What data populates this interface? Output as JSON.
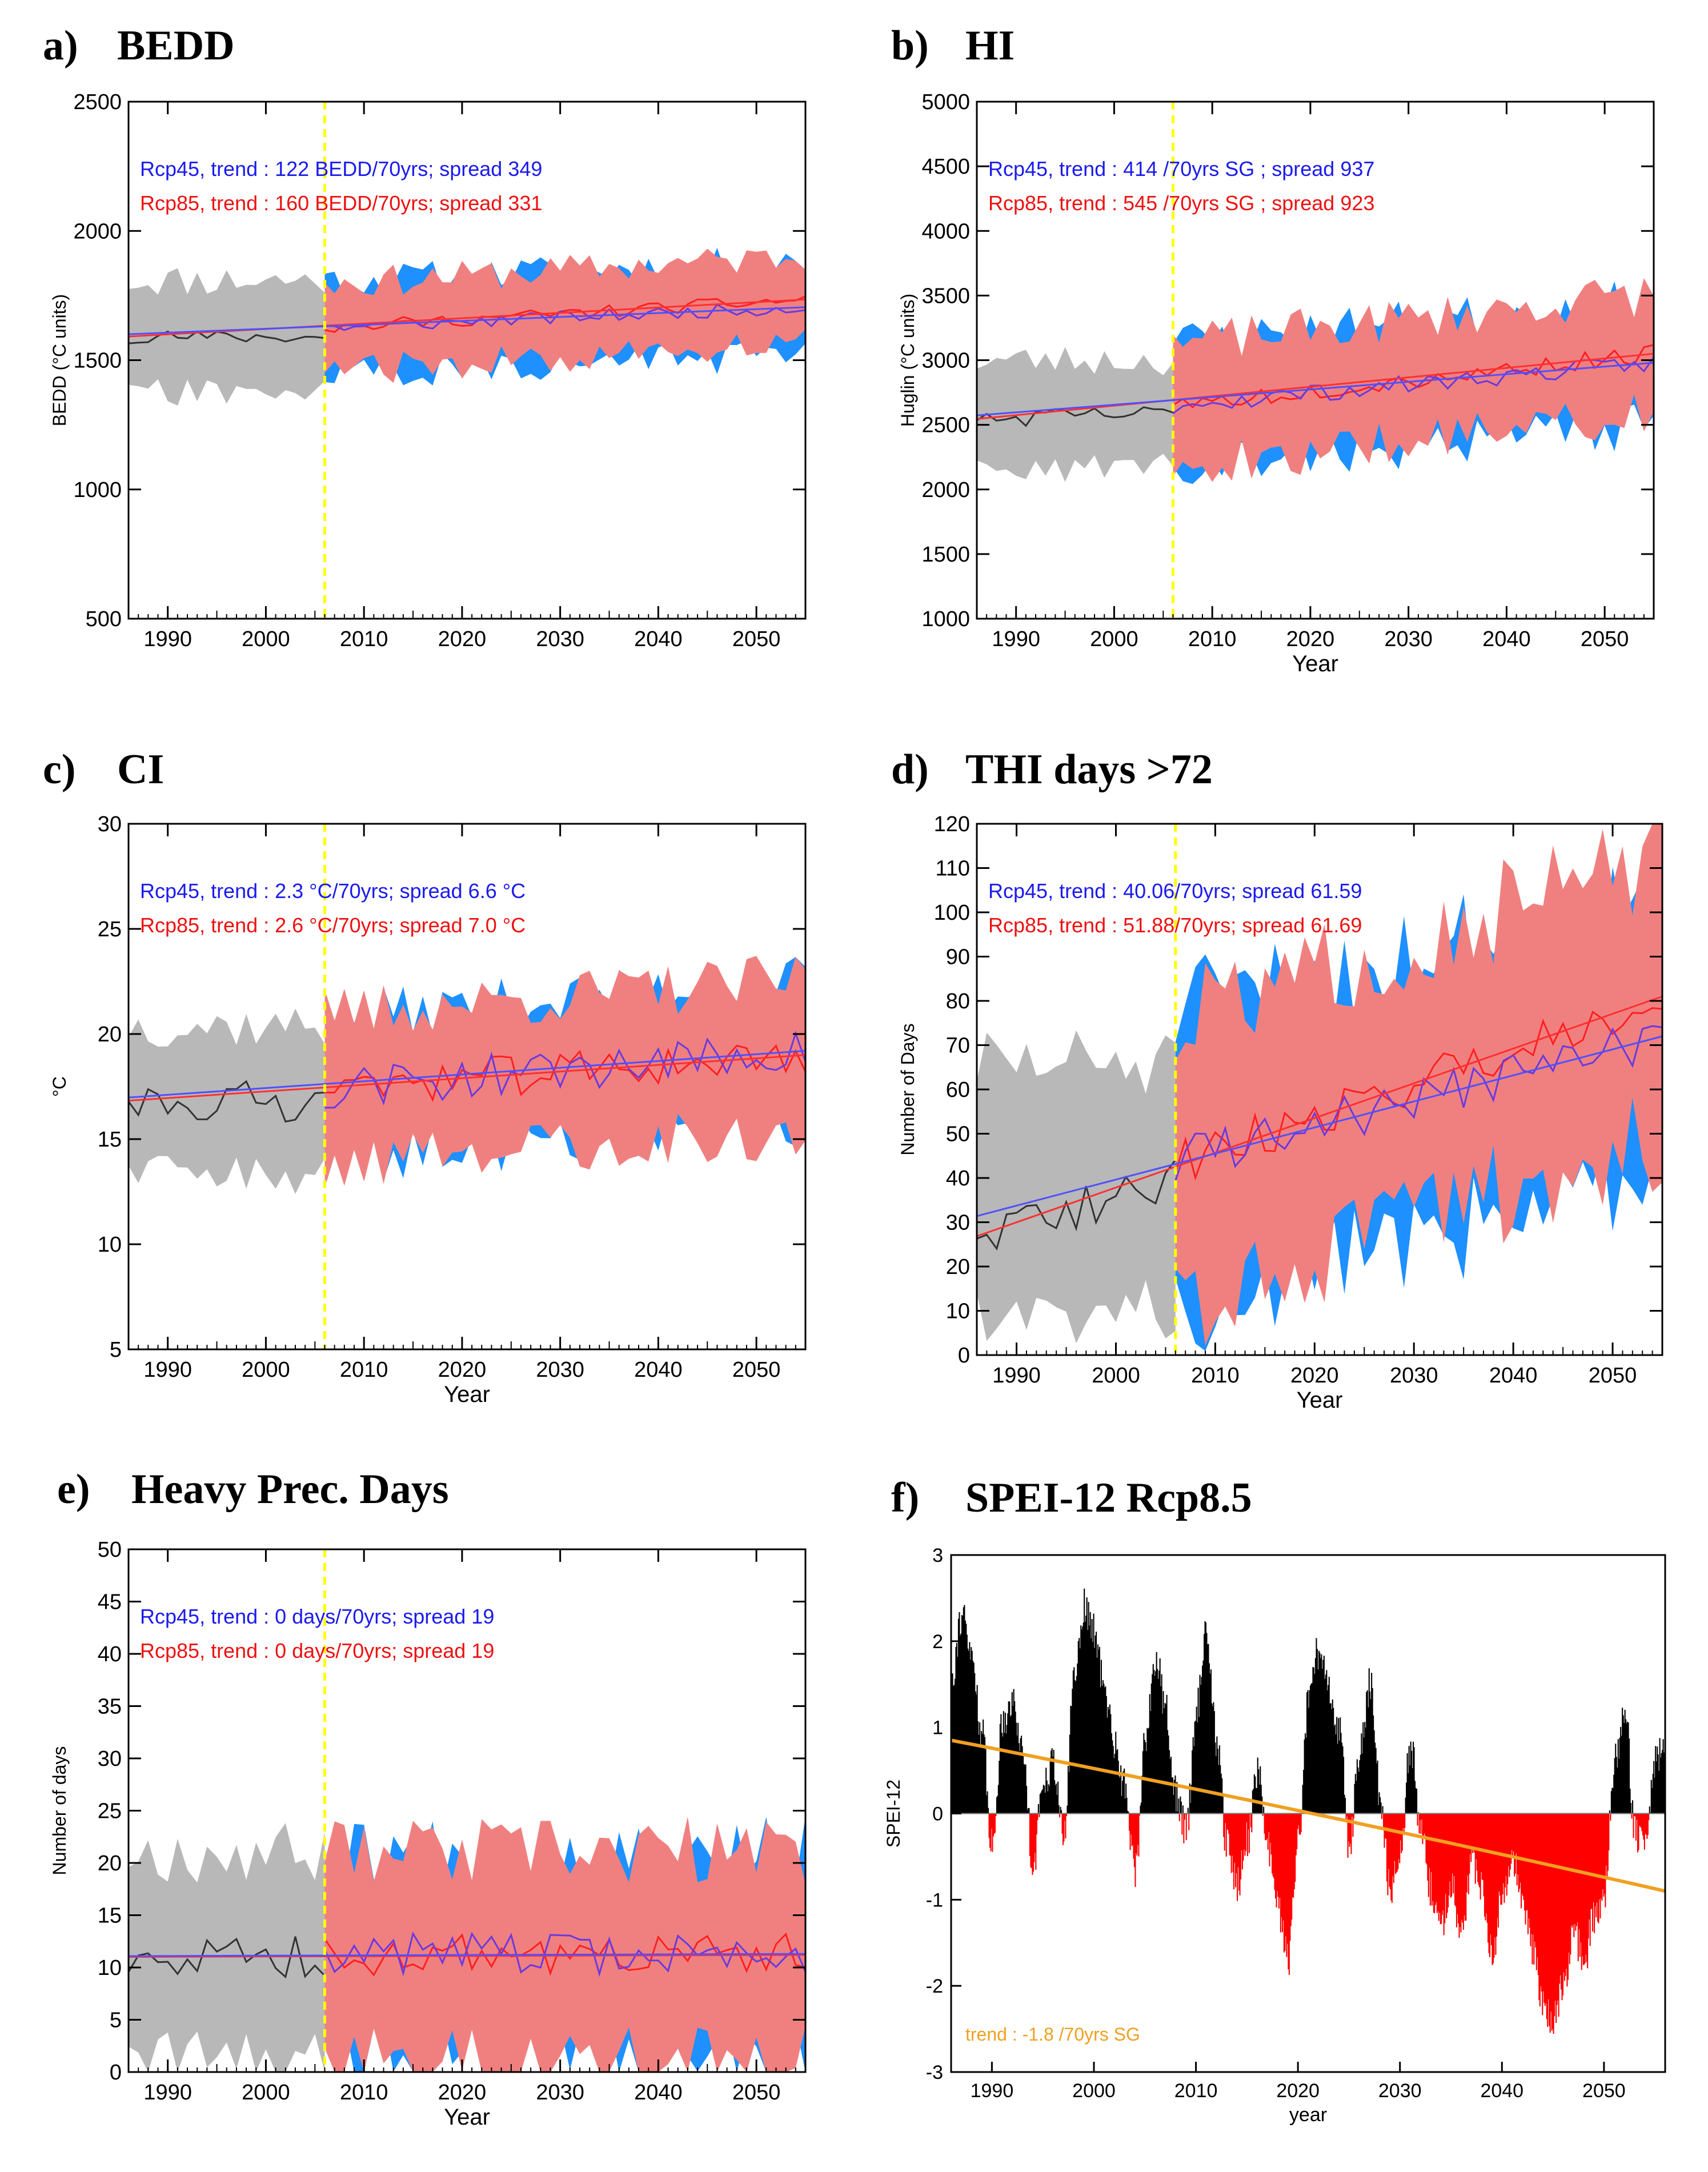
{
  "panels": [
    {
      "letter": "a)",
      "title": "BEDD",
      "ylabel": "BEDD (°C units)",
      "xlabel": "",
      "ylim": [
        500,
        2500
      ],
      "yticks": [
        500,
        1000,
        1500,
        2000,
        2500
      ],
      "xlim": [
        1986,
        2055
      ],
      "xticks": [
        1990,
        2000,
        2010,
        2020,
        2030,
        2040,
        2050
      ],
      "split_year": 2006,
      "hist_mean": 1590,
      "hist_spread": 220,
      "hist_start": 1590,
      "rcp45": {
        "start": 1625,
        "end": 1705,
        "spread": 175
      },
      "rcp85": {
        "start": 1625,
        "end": 1735,
        "spread": 165
      },
      "noise": 25,
      "seed": 11,
      "legend": [
        "Rcp45, trend : 122 BEDD/70yrs;  spread 349",
        "Rcp85, trend :  160 BEDD/70yrs;  spread 331"
      ]
    },
    {
      "letter": "b)",
      "title": "HI",
      "ylabel": "Huglin (°C units)",
      "xlabel": "Year",
      "ylim": [
        1000,
        5000
      ],
      "yticks": [
        1000,
        1500,
        2000,
        2500,
        3000,
        3500,
        4000,
        4500,
        5000
      ],
      "xlim": [
        1986,
        2055
      ],
      "xticks": [
        1990,
        2000,
        2010,
        2020,
        2030,
        2040,
        2050
      ],
      "split_year": 2006,
      "hist_mean": 2580,
      "hist_spread": 420,
      "hist_start": 2540,
      "rcp45": {
        "start": 2650,
        "end": 2980,
        "spread": 470
      },
      "rcp85": {
        "start": 2650,
        "end": 3050,
        "spread": 460
      },
      "noise": 70,
      "seed": 23,
      "legend": [
        "Rcp45, trend : 414 /70yrs SG ;  spread 937",
        "Rcp85, trend :  545 /70yrs SG ;  spread 923"
      ]
    },
    {
      "letter": "c)",
      "title": "CI",
      "ylabel": "°C",
      "xlabel": "Year",
      "ylim": [
        5,
        30
      ],
      "yticks": [
        5,
        10,
        15,
        20,
        25,
        30
      ],
      "xlim": [
        1986,
        2055
      ],
      "xticks": [
        1990,
        2000,
        2010,
        2020,
        2030,
        2040,
        2050
      ],
      "split_year": 2006,
      "hist_mean": 16.8,
      "hist_spread": 3.6,
      "hist_start": 16.8,
      "rcp45": {
        "start": 17.4,
        "end": 19.2,
        "spread": 3.3
      },
      "rcp85": {
        "start": 17.4,
        "end": 19.0,
        "spread": 3.5
      },
      "noise": 1.0,
      "seed": 37,
      "legend": [
        "Rcp45, trend : 2.3 °C/70yrs;  spread 6.6 °C",
        "Rcp85, trend :  2.6 °C/70yrs;  spread 7.0 °C"
      ]
    },
    {
      "letter": "d)",
      "title": "THI days >72",
      "ylabel": "Number of Days",
      "xlabel": "Year",
      "ylim": [
        0,
        120
      ],
      "yticks": [
        0,
        10,
        20,
        30,
        40,
        50,
        60,
        70,
        80,
        90,
        100,
        110,
        120
      ],
      "xlim": [
        1986,
        2055
      ],
      "xticks": [
        1990,
        2000,
        2010,
        2020,
        2030,
        2040,
        2050
      ],
      "split_year": 2006,
      "hist_mean": 38,
      "hist_spread": 28,
      "hist_start": 26,
      "rcp45": {
        "start": 44,
        "end": 72,
        "spread": 32
      },
      "rcp85": {
        "start": 43,
        "end": 81,
        "spread": 31
      },
      "noise": 5,
      "seed": 51,
      "legend": [
        "Rcp45, trend : 40.06/70yrs;  spread 61.59",
        "Rcp85, trend :  51.88/70yrs;  spread 61.69"
      ]
    },
    {
      "letter": "e)",
      "title": "Heavy Prec. Days",
      "ylabel": "Number of days",
      "xlabel": "Year",
      "ylim": [
        0,
        50
      ],
      "yticks": [
        0,
        5,
        10,
        15,
        20,
        25,
        30,
        35,
        40,
        45,
        50
      ],
      "xlim": [
        1986,
        2055
      ],
      "xticks": [
        1990,
        2000,
        2010,
        2020,
        2030,
        2040,
        2050
      ],
      "split_year": 2006,
      "hist_mean": 11,
      "hist_spread": 10,
      "hist_start": 11,
      "rcp45": {
        "start": 11.3,
        "end": 11.3,
        "spread": 9.5
      },
      "rcp85": {
        "start": 11.2,
        "end": 11.2,
        "spread": 9.5
      },
      "noise": 2.0,
      "seed": 67,
      "legend": [
        "Rcp45, trend : 0 days/70yrs;  spread 19",
        "Rcp85, trend :  0 days/70yrs;  spread 19"
      ]
    }
  ],
  "spei": {
    "letter": "f)",
    "title": "SPEI-12  Rcp8.5",
    "ylabel": "SPEI-12",
    "xlabel": "year",
    "ylim": [
      -3,
      3
    ],
    "yticks": [
      -3,
      -2,
      -1,
      0,
      1,
      2,
      3
    ],
    "xlim": [
      1986,
      2056
    ],
    "xticks": [
      1990,
      2000,
      2010,
      2020,
      2030,
      2040,
      2050
    ],
    "trend_text": "trend :  -1.8 /70yrs SG",
    "trend_start": 0.85,
    "trend_end": -0.9,
    "wet_color": "#000000",
    "dry_color": "#ff0000",
    "trend_color": "#f0a020",
    "anchors": [
      [
        1986,
        1.6
      ],
      [
        1987,
        2.3
      ],
      [
        1988,
        1.8
      ],
      [
        1989,
        0.9
      ],
      [
        1990,
        -0.4
      ],
      [
        1991,
        1.1
      ],
      [
        1992,
        1.3
      ],
      [
        1993,
        0.7
      ],
      [
        1994,
        -0.6
      ],
      [
        1995,
        0.4
      ],
      [
        1996,
        0.6
      ],
      [
        1997,
        -0.3
      ],
      [
        1998,
        1.6
      ],
      [
        1999,
        2.4
      ],
      [
        2000,
        2.1
      ],
      [
        2001,
        1.4
      ],
      [
        2002,
        0.8
      ],
      [
        2003,
        0.3
      ],
      [
        2004,
        -0.7
      ],
      [
        2005,
        0.9
      ],
      [
        2006,
        1.8
      ],
      [
        2007,
        1.2
      ],
      [
        2008,
        0.2
      ],
      [
        2009,
        -0.2
      ],
      [
        2010,
        1.2
      ],
      [
        2011,
        2.1
      ],
      [
        2012,
        0.8
      ],
      [
        2013,
        -0.4
      ],
      [
        2014,
        -0.8
      ],
      [
        2015,
        -0.3
      ],
      [
        2016,
        0.5
      ],
      [
        2017,
        -0.4
      ],
      [
        2018,
        -1.1
      ],
      [
        2019,
        -1.7
      ],
      [
        2020,
        -0.3
      ],
      [
        2021,
        1.3
      ],
      [
        2022,
        1.9
      ],
      [
        2023,
        1.4
      ],
      [
        2024,
        1.0
      ],
      [
        2025,
        -0.4
      ],
      [
        2026,
        0.7
      ],
      [
        2027,
        1.5
      ],
      [
        2028,
        0.2
      ],
      [
        2029,
        -0.9
      ],
      [
        2030,
        -0.4
      ],
      [
        2031,
        0.8
      ],
      [
        2032,
        -0.2
      ],
      [
        2033,
        -0.9
      ],
      [
        2034,
        -1.3
      ],
      [
        2035,
        -0.8
      ],
      [
        2036,
        -1.4
      ],
      [
        2037,
        -0.6
      ],
      [
        2038,
        -0.9
      ],
      [
        2039,
        -1.6
      ],
      [
        2040,
        -0.9
      ],
      [
        2041,
        -0.5
      ],
      [
        2042,
        -1.1
      ],
      [
        2043,
        -1.6
      ],
      [
        2044,
        -2.2
      ],
      [
        2045,
        -2.4
      ],
      [
        2046,
        -2.0
      ],
      [
        2047,
        -1.4
      ],
      [
        2048,
        -1.7
      ],
      [
        2049,
        -1.2
      ],
      [
        2050,
        -0.9
      ],
      [
        2051,
        0.6
      ],
      [
        2052,
        1.2
      ],
      [
        2053,
        -0.2
      ],
      [
        2054,
        -0.4
      ],
      [
        2055,
        0.6
      ],
      [
        2056,
        0.9
      ]
    ]
  },
  "colors": {
    "rcp45": "#1a1aee",
    "rcp85": "#ee1111",
    "rcp45_band": "#1e90ff",
    "rcp85_band": "#f08080",
    "hist_band": "#b8b8b8",
    "hist_line": "#333333",
    "split_line": "#ffff00"
  }
}
